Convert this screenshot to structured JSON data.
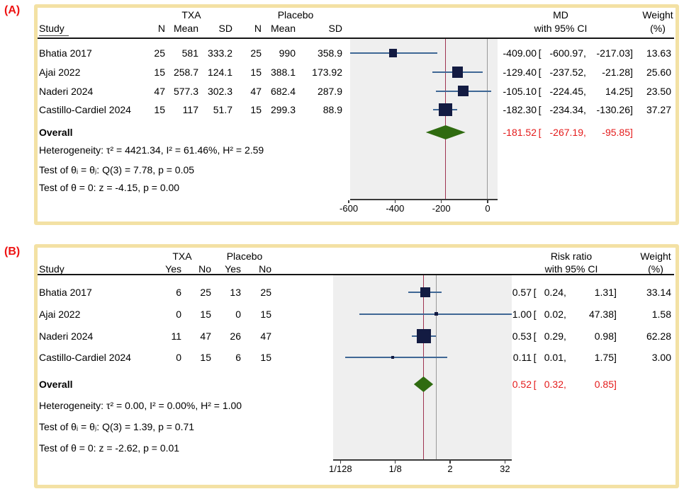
{
  "colors": {
    "panel_border": "#f3e1a4",
    "panel_label_red": "#ee1212",
    "overall_text_red": "#e41b1b",
    "marker_navy": "#131b42",
    "ci_line_steel": "#3f6795",
    "diamond_green": "#2f6b10",
    "overall_line_maroon": "#9e3350",
    "null_line_gray": "#999999",
    "plot_bg": "#efefef",
    "axis": "#3a3a3a",
    "text": "#000000"
  },
  "chart_data": [
    {
      "type": "forest",
      "panel_label": "(A)",
      "group_headers": [
        "TXA",
        "Placebo"
      ],
      "study_header": "Study",
      "col_headers": [
        "N",
        "Mean",
        "SD",
        "N",
        "Mean",
        "SD"
      ],
      "effect_header": [
        "MD",
        "with 95% CI"
      ],
      "weight_header": [
        "Weight",
        "(%)"
      ],
      "scale": "linear",
      "domain": [
        -594,
        43
      ],
      "ticks": [
        -600,
        -400,
        -200,
        0
      ],
      "tick_labels": [
        "-600",
        "-400",
        "-200",
        "0"
      ],
      "null_value": 0,
      "fmt": {
        "open": "[ ",
        "comma": ",",
        "close": "]"
      },
      "rows": [
        {
          "study": "Bhatia 2017",
          "cells": [
            "25",
            "581",
            "333.2",
            "25",
            "990",
            "358.9"
          ],
          "est": -409.0,
          "lo": -600.97,
          "hi": -217.03,
          "weight": 13.63
        },
        {
          "study": "Ajai 2022",
          "cells": [
            "15",
            "258.7",
            "124.1",
            "15",
            "388.1",
            "173.92"
          ],
          "est": -129.4,
          "lo": -237.52,
          "hi": -21.28,
          "weight": 25.6
        },
        {
          "study": "Naderi 2024",
          "cells": [
            "47",
            "577.3",
            "302.3",
            "47",
            "682.4",
            "287.9"
          ],
          "est": -105.1,
          "lo": -224.45,
          "hi": 14.25,
          "weight": 23.5
        },
        {
          "study": "Castillo-Cardiel 2024",
          "cells": [
            "15",
            "117",
            "51.7",
            "15",
            "299.3",
            "88.9"
          ],
          "est": -182.3,
          "lo": -234.34,
          "hi": -130.26,
          "weight": 37.27
        }
      ],
      "overall": {
        "label": "Overall",
        "est": -181.52,
        "lo": -267.19,
        "hi": -95.85
      },
      "stats": [
        "Heterogeneity: τ² = 4421.34, I² = 61.46%, H² = 2.59",
        "Test of θᵢ = θⱼ: Q(3) = 7.78, p = 0.05",
        "Test of θ = 0: z = -4.15, p = 0.00"
      ]
    },
    {
      "type": "forest",
      "panel_label": "(B)",
      "group_headers": [
        "TXA",
        "Placebo"
      ],
      "study_header": "Study",
      "col_headers": [
        "Yes",
        "No",
        "Yes",
        "No"
      ],
      "effect_header": [
        "Risk ratio",
        "with 95% CI"
      ],
      "weight_header": [
        "Weight",
        "(%)"
      ],
      "scale": "log2",
      "domain": [
        -7.535,
        5.5
      ],
      "ticks": [
        0.0078125,
        0.125,
        2,
        32
      ],
      "tick_labels": [
        "1/128",
        "1/8",
        "2",
        "32"
      ],
      "null_value": 1,
      "fmt": {
        "open": "[ ",
        "comma": ",",
        "close": "]"
      },
      "rows": [
        {
          "study": "Bhatia 2017",
          "cells": [
            "6",
            "25",
            "13",
            "25"
          ],
          "est": 0.57,
          "lo": 0.24,
          "hi": 1.31,
          "weight": 33.14
        },
        {
          "study": "Ajai 2022",
          "cells": [
            "0",
            "15",
            "0",
            "15"
          ],
          "est": 1.0,
          "lo": 0.02,
          "hi": 47.38,
          "weight": 1.58
        },
        {
          "study": "Naderi 2024",
          "cells": [
            "11",
            "47",
            "26",
            "47"
          ],
          "est": 0.53,
          "lo": 0.29,
          "hi": 0.98,
          "weight": 62.28
        },
        {
          "study": "Castillo-Cardiel 2024",
          "cells": [
            "0",
            "15",
            "6",
            "15"
          ],
          "est": 0.11,
          "lo": 0.01,
          "hi": 1.75,
          "weight": 3.0
        }
      ],
      "overall": {
        "label": "Overall",
        "est": 0.52,
        "lo": 0.32,
        "hi": 0.85
      },
      "stats": [
        "Heterogeneity: τ² = 0.00, I² = 0.00%, H² = 1.00",
        "Test of θᵢ = θⱼ: Q(3) = 1.39, p = 0.71",
        "Test of θ = 0: z = -2.62, p = 0.01"
      ]
    }
  ]
}
